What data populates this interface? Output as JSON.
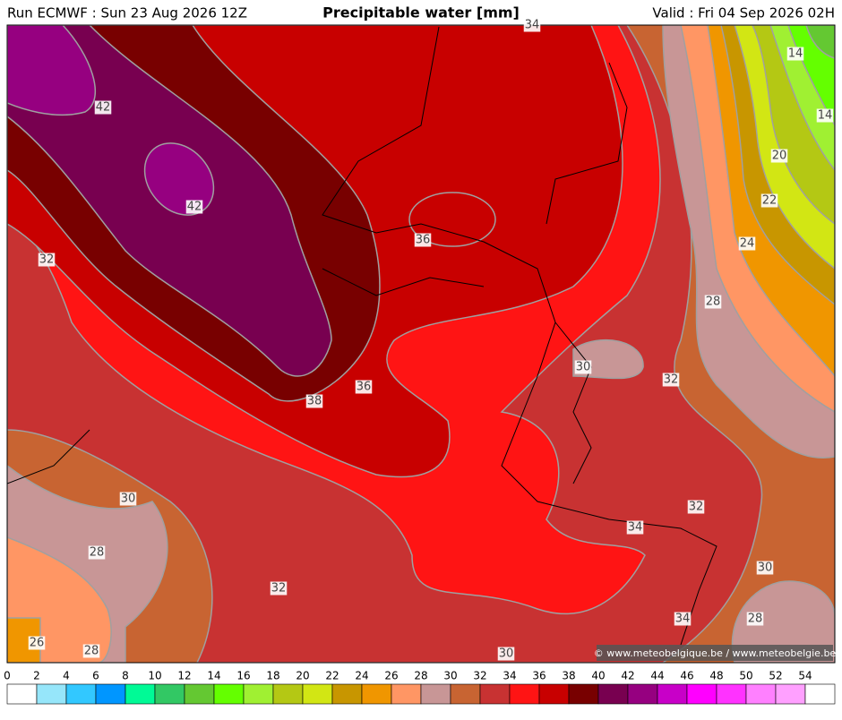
{
  "header": {
    "run": "Run ECMWF : Sun 23 Aug 2026 12Z",
    "title": "Precipitable water [mm]",
    "valid": "Valid : Fri 04 Sep 2026 02H"
  },
  "map": {
    "contour_labels": [
      "34",
      "42",
      "42",
      "32",
      "36",
      "38",
      "36",
      "14",
      "14",
      "20",
      "22",
      "24",
      "28",
      "30",
      "32",
      "30",
      "28",
      "32",
      "34",
      "32",
      "30",
      "28",
      "34",
      "26",
      "28",
      "30"
    ]
  },
  "credit": "© www.meteobelgique.be / www.meteobelgie.be",
  "colorbar": {
    "ticks": [
      0,
      2,
      4,
      6,
      8,
      10,
      12,
      14,
      16,
      18,
      20,
      22,
      24,
      26,
      28,
      30,
      32,
      34,
      36,
      38,
      40,
      42,
      44,
      46,
      48,
      50,
      52,
      54
    ],
    "colors": [
      "#ffffff",
      "#96e6fa",
      "#32c8ff",
      "#0096ff",
      "#00fa96",
      "#32c864",
      "#64c832",
      "#64ff00",
      "#a0f032",
      "#b4c814",
      "#d2e614",
      "#c89600",
      "#f09600",
      "#ff9664",
      "#c89696",
      "#c86432",
      "#c83232",
      "#ff1414",
      "#c80000",
      "#780000",
      "#780050",
      "#960080",
      "#c800c8",
      "#ff00ff",
      "#ff32ff",
      "#ff80ff",
      "#ffa0ff",
      "#ffffff"
    ]
  }
}
